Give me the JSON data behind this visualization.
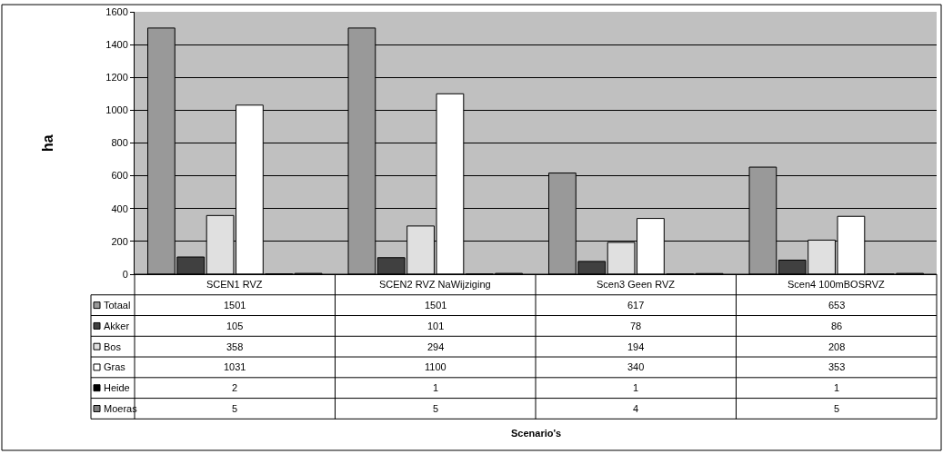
{
  "chart_data": {
    "type": "bar",
    "annotations": [
      "Scenario's"
    ],
    "ylabel": "ha",
    "categories": [
      "SCEN1 RVZ",
      "SCEN2 RVZ NaWijziging",
      "Scen3 Geen RVZ",
      "Scen4 100mBOSRVZ"
    ],
    "series": [
      {
        "name": "Totaal",
        "color": "#999999",
        "values": [
          1501,
          1501,
          617,
          653
        ]
      },
      {
        "name": "Akker",
        "color": "#404040",
        "values": [
          105,
          101,
          78,
          86
        ]
      },
      {
        "name": "Bos",
        "color": "#e0e0e0",
        "values": [
          358,
          294,
          194,
          208
        ]
      },
      {
        "name": "Gras",
        "color": "#ffffff",
        "values": [
          1031,
          1100,
          340,
          353
        ]
      },
      {
        "name": "Heide",
        "color": "#000000",
        "values": [
          2,
          1,
          1,
          1
        ]
      },
      {
        "name": "Moeras",
        "color": "#808080",
        "values": [
          5,
          5,
          4,
          5
        ]
      }
    ],
    "ylim": [
      0,
      1600
    ],
    "yticks": [
      0,
      200,
      400,
      600,
      800,
      1000,
      1200,
      1400,
      1600
    ],
    "grid": "y",
    "legend": "bottom",
    "data_labels": true
  }
}
